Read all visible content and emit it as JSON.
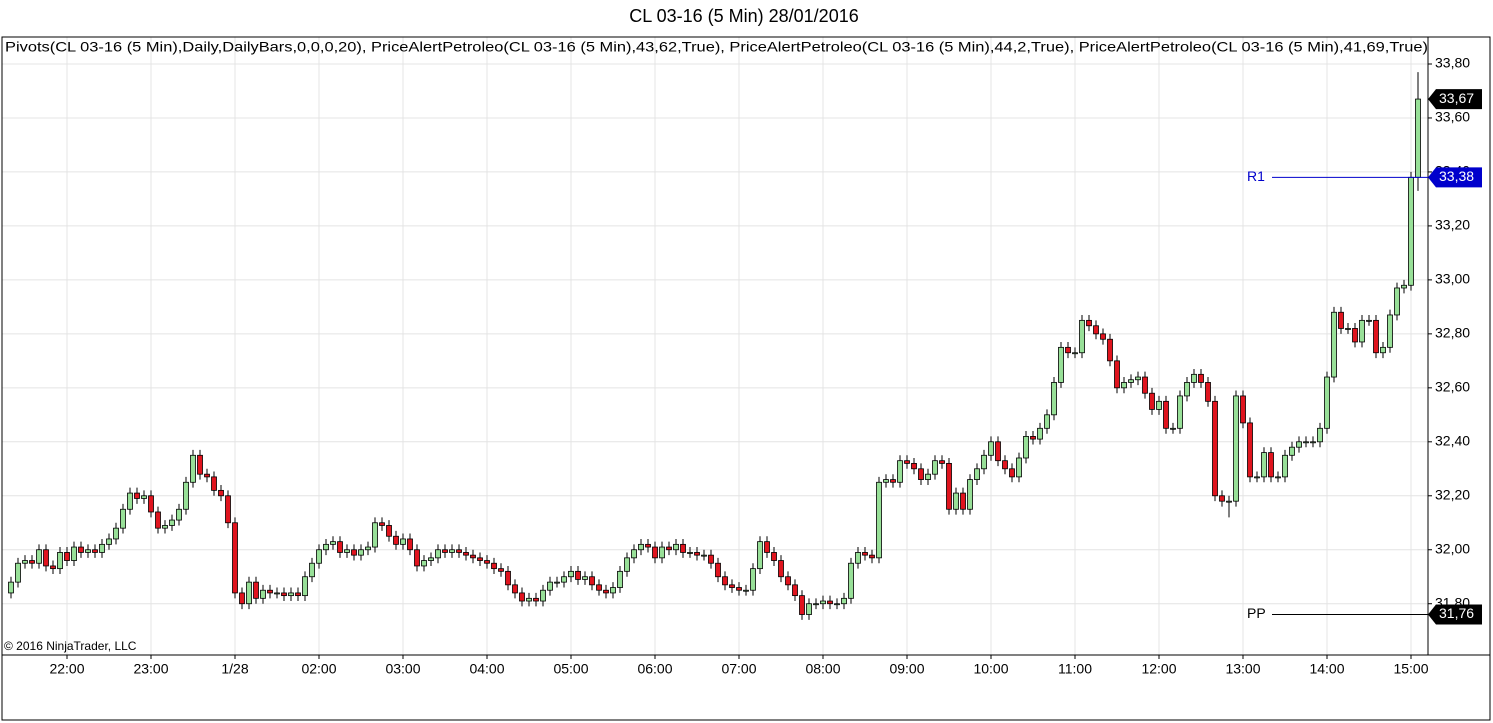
{
  "chart_data": {
    "type": "candlestick",
    "title": "CL 03-16 (5 Min)  28/01/2016",
    "indicators": "Pivots(CL 03-16 (5 Min),Daily,DailyBars,0,0,0,20),  PriceAlertPetroleo(CL 03-16 (5 Min),43,62,True),  PriceAlertPetroleo(CL 03-16 (5 Min),44,2,True),  PriceAlertPetroleo(CL 03-16 (5 Min),41,69,True)",
    "copyright": "© 2016 NinjaTrader, LLC",
    "up_color": "#98e098",
    "down_color": "#e0141e",
    "grid": true,
    "ylim": [
      31.61,
      33.9
    ],
    "yticks": [
      {
        "value": 31.8,
        "label": "31,80"
      },
      {
        "value": 32.0,
        "label": "32,00"
      },
      {
        "value": 32.2,
        "label": "32,20"
      },
      {
        "value": 32.4,
        "label": "32,40"
      },
      {
        "value": 32.6,
        "label": "32,60"
      },
      {
        "value": 32.8,
        "label": "32,80"
      },
      {
        "value": 33.0,
        "label": "33,00"
      },
      {
        "value": 33.2,
        "label": "33,20"
      },
      {
        "value": 33.4,
        "label": "33,40"
      },
      {
        "value": 33.6,
        "label": "33,60"
      },
      {
        "value": 33.8,
        "label": "33,80"
      }
    ],
    "levels": [
      {
        "name": "R1",
        "value": 33.38,
        "label": "33,38",
        "color": "#0000cc"
      },
      {
        "name": "PP",
        "value": 31.76,
        "label": "31,76",
        "color": "#000000"
      }
    ],
    "last_price": {
      "value": 33.67,
      "label": "33,67"
    },
    "categories": [
      null,
      null,
      null,
      null,
      null,
      null,
      null,
      null,
      "22:00",
      null,
      null,
      null,
      null,
      null,
      null,
      null,
      null,
      null,
      null,
      null,
      "23:00",
      null,
      null,
      null,
      null,
      null,
      null,
      null,
      null,
      null,
      null,
      null,
      "1/28",
      null,
      null,
      null,
      null,
      null,
      null,
      null,
      null,
      null,
      null,
      null,
      "02:00",
      null,
      null,
      null,
      null,
      null,
      null,
      null,
      null,
      null,
      null,
      null,
      "03:00",
      null,
      null,
      null,
      null,
      null,
      null,
      null,
      null,
      null,
      null,
      null,
      "04:00",
      null,
      null,
      null,
      null,
      null,
      null,
      null,
      null,
      null,
      null,
      null,
      "05:00",
      null,
      null,
      null,
      null,
      null,
      null,
      null,
      null,
      null,
      null,
      null,
      "06:00",
      null,
      null,
      null,
      null,
      null,
      null,
      null,
      null,
      null,
      null,
      null,
      "07:00",
      null,
      null,
      null,
      null,
      null,
      null,
      null,
      null,
      null,
      null,
      null,
      "08:00",
      null,
      null,
      null,
      null,
      null,
      null,
      null,
      null,
      null,
      null,
      null,
      "09:00",
      null,
      null,
      null,
      null,
      null,
      null,
      null,
      null,
      null,
      null,
      null,
      "10:00",
      null,
      null,
      null,
      null,
      null,
      null,
      null,
      null,
      null,
      null,
      null,
      "11:00",
      null,
      null,
      null,
      null,
      null,
      null,
      null,
      null,
      null,
      null,
      null,
      "12:00",
      null,
      null,
      null,
      null,
      null,
      null,
      null,
      null,
      null,
      null,
      null,
      "13:00",
      null,
      null,
      null,
      null,
      null,
      null,
      null,
      null,
      null,
      null,
      null,
      "14:00",
      null,
      null,
      null,
      null,
      null,
      null,
      null,
      null,
      null,
      null,
      null,
      "15:00",
      null
    ],
    "open": [
      31.84,
      31.88,
      31.95,
      31.96,
      31.95,
      32.0,
      31.94,
      31.93,
      31.99,
      31.96,
      32.01,
      31.99,
      32.0,
      31.99,
      32.02,
      32.04,
      32.08,
      32.15,
      32.21,
      32.19,
      32.2,
      32.14,
      32.08,
      32.09,
      32.11,
      32.15,
      32.25,
      32.35,
      32.28,
      32.27,
      32.22,
      32.2,
      32.1,
      31.84,
      31.8,
      31.88,
      31.82,
      31.85,
      31.84,
      31.84,
      31.83,
      31.84,
      31.83,
      31.9,
      31.95,
      32.0,
      32.02,
      32.03,
      31.99,
      32.0,
      31.98,
      32.0,
      32.01,
      32.1,
      32.09,
      32.05,
      32.02,
      32.04,
      32.0,
      31.94,
      31.96,
      31.97,
      32.0,
      31.99,
      32.0,
      31.99,
      31.98,
      31.97,
      31.96,
      31.95,
      31.93,
      31.92,
      31.87,
      31.84,
      31.81,
      31.82,
      31.81,
      31.85,
      31.88,
      31.88,
      31.9,
      31.92,
      31.89,
      31.9,
      31.87,
      31.85,
      31.84,
      31.86,
      31.92,
      31.97,
      32.0,
      32.02,
      32.01,
      31.97,
      32.01,
      32.0,
      32.02,
      31.99,
      31.99,
      31.98,
      31.98,
      31.95,
      31.9,
      31.87,
      31.86,
      31.85,
      31.85,
      31.93,
      32.03,
      31.99,
      31.96,
      31.9,
      31.87,
      31.83,
      31.76,
      31.8,
      31.8,
      31.81,
      31.8,
      31.8,
      31.82,
      31.95,
      31.99,
      31.98,
      31.97,
      32.25,
      32.26,
      32.25,
      32.33,
      32.32,
      32.3,
      32.26,
      32.28,
      32.33,
      32.32,
      32.15,
      32.21,
      32.15,
      32.26,
      32.3,
      32.35,
      32.4,
      32.33,
      32.3,
      32.27,
      32.34,
      32.42,
      32.41,
      32.45,
      32.5,
      32.62,
      32.75,
      32.73,
      32.73,
      32.85,
      32.83,
      32.8,
      32.78,
      32.7,
      32.6,
      32.62,
      32.63,
      32.64,
      32.58,
      32.52,
      32.55,
      32.45,
      32.45,
      32.57,
      32.62,
      32.65,
      32.62,
      32.55,
      32.2,
      32.18,
      32.18,
      32.57,
      32.47,
      32.27,
      32.27,
      32.36,
      32.27,
      32.27,
      32.35,
      32.38,
      32.4,
      32.4,
      32.4,
      32.45,
      32.64,
      32.88,
      32.82,
      32.82,
      32.77,
      32.85,
      32.85,
      32.73,
      32.75,
      32.87,
      32.97,
      32.98,
      33.38
    ],
    "high": [
      31.9,
      31.97,
      31.98,
      31.98,
      32.02,
      32.02,
      31.96,
      32.01,
      32.01,
      32.03,
      32.03,
      32.02,
      32.02,
      32.04,
      32.06,
      32.1,
      32.17,
      32.23,
      32.23,
      32.22,
      32.22,
      32.16,
      32.11,
      32.13,
      32.17,
      32.27,
      32.37,
      32.37,
      32.3,
      32.29,
      32.24,
      32.22,
      32.12,
      31.86,
      31.9,
      31.9,
      31.87,
      31.87,
      31.86,
      31.86,
      31.86,
      31.86,
      31.92,
      31.97,
      32.02,
      32.04,
      32.05,
      32.05,
      32.02,
      32.02,
      32.02,
      32.03,
      32.12,
      32.12,
      32.11,
      32.07,
      32.06,
      32.06,
      32.02,
      31.98,
      31.99,
      32.02,
      32.02,
      32.02,
      32.02,
      32.01,
      32.0,
      31.99,
      31.98,
      31.97,
      31.95,
      31.94,
      31.89,
      31.86,
      31.84,
      31.84,
      31.87,
      31.9,
      31.9,
      31.92,
      31.94,
      31.94,
      31.92,
      31.92,
      31.89,
      31.87,
      31.88,
      31.94,
      31.99,
      32.02,
      32.04,
      32.04,
      32.03,
      32.03,
      32.03,
      32.04,
      32.04,
      32.01,
      32.01,
      32.0,
      32.0,
      31.97,
      31.92,
      31.89,
      31.88,
      31.87,
      31.95,
      32.05,
      32.05,
      32.01,
      31.98,
      31.92,
      31.89,
      31.85,
      31.82,
      31.82,
      31.83,
      31.83,
      31.82,
      31.84,
      31.97,
      32.01,
      32.01,
      32.0,
      32.27,
      32.28,
      32.28,
      32.35,
      32.35,
      32.34,
      32.32,
      32.3,
      32.35,
      32.35,
      32.34,
      32.23,
      32.23,
      32.28,
      32.32,
      32.37,
      32.42,
      32.42,
      32.35,
      32.32,
      32.36,
      32.44,
      32.44,
      32.47,
      32.52,
      32.64,
      32.77,
      32.77,
      32.75,
      32.87,
      32.87,
      32.85,
      32.82,
      32.8,
      32.72,
      32.64,
      32.65,
      32.66,
      32.66,
      32.6,
      32.57,
      32.57,
      32.47,
      32.59,
      32.64,
      32.67,
      32.67,
      32.64,
      32.57,
      32.22,
      32.2,
      32.59,
      32.59,
      32.49,
      32.29,
      32.38,
      32.38,
      32.29,
      32.37,
      32.4,
      32.42,
      32.42,
      32.42,
      32.47,
      32.66,
      32.9,
      32.9,
      32.84,
      32.84,
      32.87,
      32.87,
      32.87,
      32.77,
      32.89,
      32.99,
      33.0,
      33.4,
      33.77
    ],
    "low": [
      31.82,
      31.86,
      31.93,
      31.93,
      31.93,
      31.92,
      31.91,
      31.91,
      31.94,
      31.94,
      31.97,
      31.97,
      31.97,
      31.97,
      32.0,
      32.02,
      32.06,
      32.13,
      32.17,
      32.17,
      32.12,
      32.06,
      32.06,
      32.07,
      32.09,
      32.13,
      32.23,
      32.26,
      32.25,
      32.2,
      32.18,
      32.08,
      31.82,
      31.78,
      31.78,
      31.8,
      31.8,
      31.82,
      31.82,
      31.81,
      31.81,
      31.81,
      31.81,
      31.88,
      31.93,
      31.98,
      32.0,
      31.97,
      31.97,
      31.96,
      31.96,
      31.98,
      31.99,
      32.07,
      32.03,
      32.0,
      32.0,
      31.98,
      31.92,
      31.92,
      31.94,
      31.95,
      31.97,
      31.97,
      31.97,
      31.96,
      31.95,
      31.94,
      31.93,
      31.91,
      31.9,
      31.85,
      31.82,
      31.79,
      31.79,
      31.79,
      31.79,
      31.83,
      31.86,
      31.86,
      31.88,
      31.87,
      31.87,
      31.85,
      31.83,
      31.82,
      31.82,
      31.84,
      31.9,
      31.95,
      31.98,
      31.99,
      31.95,
      31.95,
      31.98,
      31.98,
      31.97,
      31.97,
      31.96,
      31.96,
      31.93,
      31.88,
      31.85,
      31.84,
      31.83,
      31.83,
      31.83,
      31.91,
      31.97,
      31.94,
      31.88,
      31.85,
      31.81,
      31.74,
      31.74,
      31.78,
      31.78,
      31.78,
      31.78,
      31.78,
      31.8,
      31.93,
      31.96,
      31.95,
      31.95,
      32.23,
      32.23,
      32.23,
      32.3,
      32.28,
      32.24,
      32.24,
      32.26,
      32.3,
      32.13,
      32.13,
      32.13,
      32.13,
      32.24,
      32.28,
      32.33,
      32.31,
      32.28,
      32.25,
      32.25,
      32.32,
      32.39,
      32.39,
      32.43,
      32.48,
      32.6,
      32.71,
      32.71,
      32.71,
      32.81,
      32.78,
      32.76,
      32.68,
      32.58,
      32.58,
      32.6,
      32.61,
      32.56,
      32.5,
      32.5,
      32.43,
      32.43,
      32.43,
      32.55,
      32.6,
      32.6,
      32.53,
      32.18,
      32.16,
      32.12,
      32.16,
      32.45,
      32.25,
      32.25,
      32.25,
      32.25,
      32.25,
      32.25,
      32.33,
      32.36,
      32.38,
      32.38,
      32.38,
      32.43,
      32.62,
      32.8,
      32.8,
      32.75,
      32.75,
      32.83,
      32.71,
      32.71,
      32.73,
      32.85,
      32.95,
      32.96,
      33.33
    ],
    "close": [
      31.88,
      31.95,
      31.96,
      31.95,
      32.0,
      31.94,
      31.93,
      31.99,
      31.96,
      32.01,
      31.99,
      32.0,
      31.99,
      32.02,
      32.04,
      32.08,
      32.15,
      32.21,
      32.19,
      32.2,
      32.14,
      32.08,
      32.09,
      32.11,
      32.15,
      32.25,
      32.35,
      32.28,
      32.27,
      32.22,
      32.2,
      32.1,
      31.84,
      31.8,
      31.88,
      31.82,
      31.85,
      31.84,
      31.84,
      31.83,
      31.84,
      31.83,
      31.9,
      31.95,
      32.0,
      32.02,
      32.03,
      31.99,
      32.0,
      31.98,
      32.0,
      32.01,
      32.1,
      32.09,
      32.05,
      32.02,
      32.04,
      32.0,
      31.94,
      31.96,
      31.97,
      32.0,
      31.99,
      32.0,
      31.99,
      31.98,
      31.97,
      31.96,
      31.95,
      31.93,
      31.92,
      31.87,
      31.84,
      31.81,
      31.82,
      31.81,
      31.85,
      31.88,
      31.88,
      31.9,
      31.92,
      31.89,
      31.9,
      31.87,
      31.85,
      31.84,
      31.86,
      31.92,
      31.97,
      32.0,
      32.02,
      32.01,
      31.97,
      32.01,
      32.0,
      32.02,
      31.99,
      31.99,
      31.98,
      31.98,
      31.95,
      31.9,
      31.87,
      31.86,
      31.85,
      31.85,
      31.93,
      32.03,
      31.99,
      31.96,
      31.9,
      31.87,
      31.83,
      31.76,
      31.8,
      31.8,
      31.81,
      31.8,
      31.8,
      31.82,
      31.95,
      31.99,
      31.98,
      31.97,
      32.25,
      32.26,
      32.25,
      32.33,
      32.32,
      32.3,
      32.26,
      32.28,
      32.33,
      32.32,
      32.15,
      32.21,
      32.15,
      32.26,
      32.3,
      32.35,
      32.4,
      32.33,
      32.3,
      32.27,
      32.34,
      32.42,
      32.41,
      32.45,
      32.5,
      32.62,
      32.75,
      32.73,
      32.73,
      32.85,
      32.83,
      32.8,
      32.78,
      32.7,
      32.6,
      32.62,
      32.63,
      32.64,
      32.58,
      32.52,
      32.55,
      32.45,
      32.45,
      32.57,
      32.62,
      32.65,
      32.62,
      32.55,
      32.2,
      32.18,
      32.18,
      32.57,
      32.47,
      32.27,
      32.27,
      32.36,
      32.27,
      32.27,
      32.35,
      32.38,
      32.4,
      32.4,
      32.4,
      32.45,
      32.64,
      32.88,
      32.82,
      32.82,
      32.77,
      32.85,
      32.85,
      32.73,
      32.75,
      32.87,
      32.97,
      32.98,
      33.38,
      33.67
    ]
  }
}
